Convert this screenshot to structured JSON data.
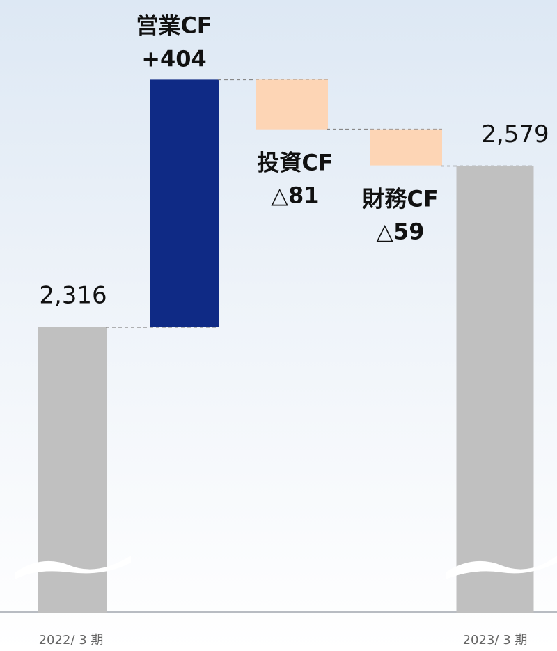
{
  "chart_data": {
    "type": "waterfall",
    "categories": [
      "2022/ 3 期",
      "営業CF",
      "投資CF",
      "財務CF",
      "2023/ 3 期"
    ],
    "values": [
      2316,
      404,
      -81,
      -59,
      2579
    ],
    "value_labels": [
      "2,316",
      "+404",
      "△81",
      "△59",
      "2,579"
    ],
    "measure": [
      "absolute",
      "relative",
      "relative",
      "relative",
      "absolute"
    ],
    "colors": [
      "#c0c0c0",
      "#0f2a85",
      "#fdd5b5",
      "#fdd5b5",
      "#c0c0c0"
    ],
    "ylim": [
      1850,
      2850
    ]
  }
}
